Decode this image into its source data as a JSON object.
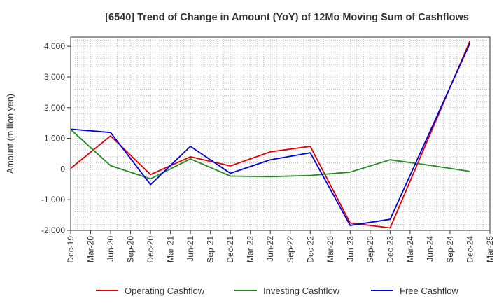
{
  "chart_data": {
    "type": "line",
    "title": "[6540]  Trend of Change in Amount (YoY) of 12Mo Moving Sum of Cashflows",
    "xlabel": "",
    "ylabel": "Amount (million yen)",
    "ylim": [
      -2000,
      4300
    ],
    "y_ticks": [
      -2000,
      -1000,
      0,
      1000,
      2000,
      3000,
      4000
    ],
    "y_tick_labels": [
      "-2,000",
      "-1,000",
      "0",
      "1,000",
      "2,000",
      "3,000",
      "4,000"
    ],
    "x_labels": [
      "Dec-19",
      "Mar-20",
      "Jun-20",
      "Sep-20",
      "Dec-20",
      "Mar-21",
      "Jun-21",
      "Sep-21",
      "Dec-21",
      "Mar-22",
      "Jun-22",
      "Sep-22",
      "Dec-22",
      "Mar-23",
      "Jun-23",
      "Sep-23",
      "Dec-23",
      "Mar-24",
      "Jun-24",
      "Sep-24",
      "Dec-24",
      "Mar-25"
    ],
    "grid": true,
    "legend_position": "bottom",
    "series": [
      {
        "name": "Operating Cashflow",
        "color": "#e00000",
        "points": [
          [
            0,
            20
          ],
          [
            2,
            1080
          ],
          [
            4,
            -180
          ],
          [
            6,
            400
          ],
          [
            8,
            100
          ],
          [
            10,
            560
          ],
          [
            12,
            740
          ],
          [
            14,
            -1760
          ],
          [
            16,
            -1920
          ],
          [
            20,
            4180
          ]
        ]
      },
      {
        "name": "Investing Cashflow",
        "color": "#228b22",
        "points": [
          [
            0,
            1290
          ],
          [
            2,
            110
          ],
          [
            4,
            -320
          ],
          [
            6,
            330
          ],
          [
            8,
            -230
          ],
          [
            10,
            -250
          ],
          [
            12,
            -210
          ],
          [
            14,
            -100
          ],
          [
            16,
            300
          ],
          [
            18,
            120
          ],
          [
            20,
            -80
          ]
        ]
      },
      {
        "name": "Free Cashflow",
        "color": "#0000dd",
        "points": [
          [
            0,
            1300
          ],
          [
            2,
            1190
          ],
          [
            4,
            -510
          ],
          [
            6,
            740
          ],
          [
            8,
            -140
          ],
          [
            10,
            300
          ],
          [
            12,
            530
          ],
          [
            14,
            -1840
          ],
          [
            16,
            -1640
          ],
          [
            20,
            4100
          ]
        ]
      }
    ]
  }
}
